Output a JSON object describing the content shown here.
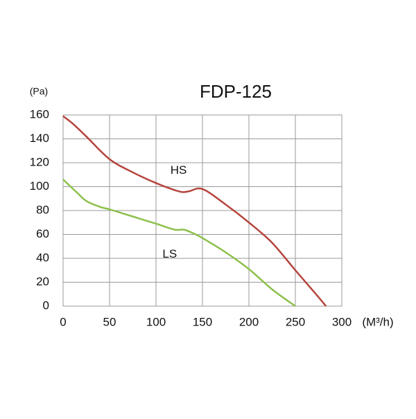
{
  "chart_data": {
    "type": "line",
    "title": "FDP-125",
    "y_label": "(Pa)",
    "x_label": "(M³/h)",
    "x_HS": [
      0,
      10,
      25,
      50,
      75,
      100,
      125,
      135,
      150,
      175,
      200,
      225,
      250,
      270,
      283
    ],
    "x_LS": [
      0,
      15,
      25,
      40,
      50,
      75,
      100,
      120,
      130,
      140,
      150,
      175,
      200,
      225,
      250
    ],
    "series": [
      {
        "name": "HS",
        "color": "#b5443c",
        "values": [
          159,
          153,
          142,
          123,
          112,
          103,
          96,
          96,
          98,
          85,
          70,
          53,
          30,
          12,
          0
        ]
      },
      {
        "name": "LS",
        "color": "#8cc04a",
        "values": [
          106,
          95,
          88,
          83,
          81,
          75,
          69,
          64,
          64,
          61,
          57,
          45,
          31,
          14,
          0
        ]
      }
    ],
    "xlim": [
      0,
      300
    ],
    "xticks": [
      0,
      50,
      100,
      150,
      200,
      250,
      300
    ],
    "ylim": [
      0,
      160
    ],
    "yticks": [
      0,
      20,
      40,
      60,
      80,
      100,
      120,
      140,
      160
    ],
    "grid": true
  }
}
